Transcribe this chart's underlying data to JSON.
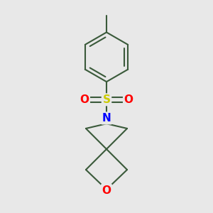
{
  "bg_color": "#e8e8e8",
  "line_color": "#3a5a3a",
  "S_color": "#cccc00",
  "O_color": "#ff0000",
  "N_color": "#0000ff",
  "line_width": 1.5,
  "font_size_atom": 10,
  "xlim": [
    -1.3,
    1.3
  ],
  "ylim": [
    -1.55,
    1.55
  ]
}
